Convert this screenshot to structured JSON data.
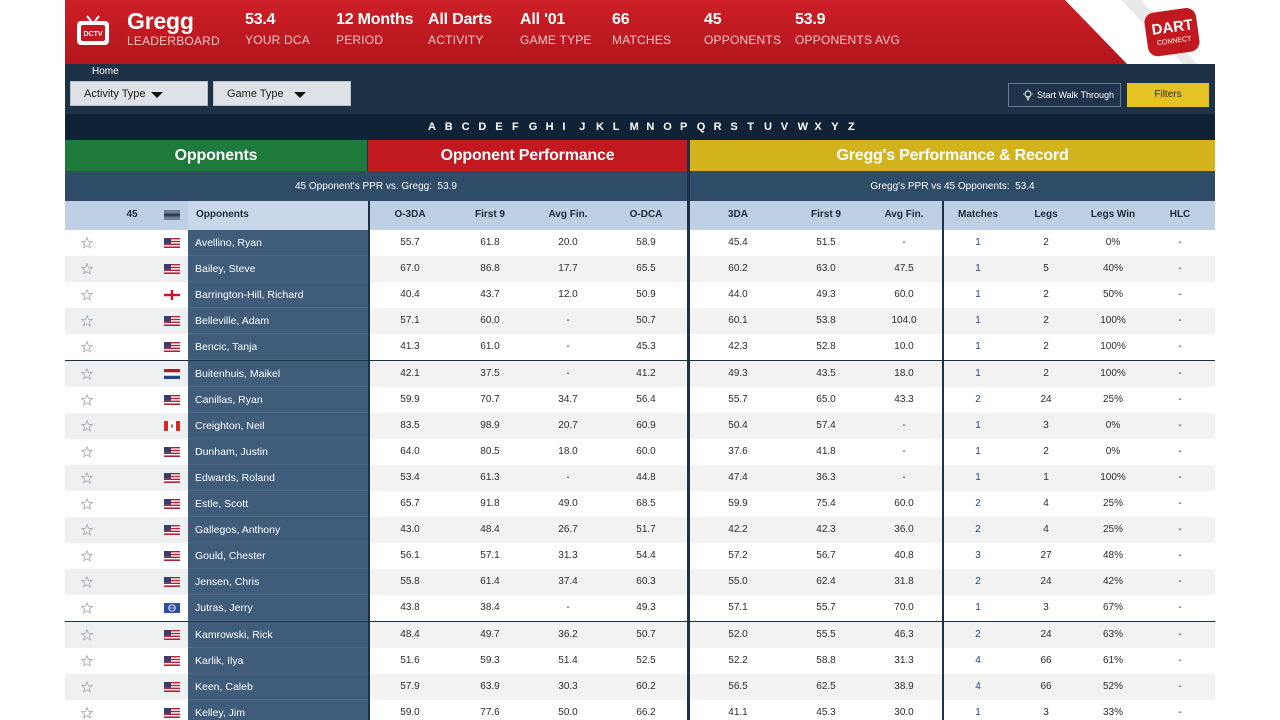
{
  "header": {
    "logo_icon": "dctv-tv-icon",
    "player": {
      "value": "Gregg",
      "label": "LEADERBOARD"
    },
    "stats": [
      {
        "value": "53.4",
        "label": "YOUR DCA"
      },
      {
        "value": "12 Months",
        "label": "PERIOD"
      },
      {
        "value": "All Darts",
        "label": "ACTIVITY"
      },
      {
        "value": "All '01",
        "label": "GAME TYPE"
      },
      {
        "value": "66",
        "label": "MATCHES"
      },
      {
        "value": "45",
        "label": "OPPONENTS"
      },
      {
        "value": "53.9",
        "label": "OPPONENTS AVG"
      }
    ],
    "brand_icon": "dartconnect-logo",
    "brand_line1": "DART",
    "brand_line2": "CONNECT"
  },
  "toolbar": {
    "breadcrumb": "Home",
    "activity_dropdown": "Activity Type",
    "game_dropdown": "Game Type",
    "walkthrough_label": "Start Walk Through",
    "filters_label": "Filters"
  },
  "alphabet": [
    "A",
    "B",
    "C",
    "D",
    "E",
    "F",
    "G",
    "H",
    "I",
    "J",
    "K",
    "L",
    "M",
    "N",
    "O",
    "P",
    "Q",
    "R",
    "S",
    "T",
    "U",
    "V",
    "W",
    "X",
    "Y",
    "Z"
  ],
  "sections": {
    "opponents": "Opponents",
    "opponent_performance": "Opponent Performance",
    "gregg_performance": "Gregg's Performance & Record"
  },
  "ppr": {
    "left_text": "45 Opponent's PPR vs. Gregg:",
    "left_value": "53.9",
    "right_text": "Gregg's PPR vs 45 Opponents:",
    "right_value": "53.4"
  },
  "columns": {
    "count": "45",
    "opponents": "Opponents",
    "o3da": "O-3DA",
    "first9": "First 9",
    "avgfin": "Avg Fin.",
    "odca": "O-DCA",
    "g3da": "3DA",
    "gfirst9": "First 9",
    "gavgfin": "Avg Fin.",
    "matches": "Matches",
    "legs": "Legs",
    "legswin": "Legs Win",
    "hlc": "HLC"
  },
  "colors": {
    "header_red": "#c21820",
    "opponents_green": "#1e7a3c",
    "record_gold": "#d2b31d",
    "navy": "#1d3147",
    "filters_yellow": "#e5c322"
  },
  "rows": [
    {
      "name": "Avellino, Ryan",
      "flag": "us",
      "o3da": "55.7",
      "f9": "61.8",
      "afin": "20.0",
      "odca": "58.9",
      "g3da": "45.4",
      "gf9": "51.5",
      "gafin": "-",
      "m": "1",
      "legs": "2",
      "lw": "0%",
      "hlc": "-"
    },
    {
      "name": "Bailey, Steve",
      "flag": "us",
      "o3da": "67.0",
      "f9": "86.8",
      "afin": "17.7",
      "odca": "65.5",
      "g3da": "60.2",
      "gf9": "63.0",
      "gafin": "47.5",
      "m": "1",
      "legs": "5",
      "lw": "40%",
      "hlc": "-"
    },
    {
      "name": "Barrington-Hill, Richard",
      "flag": "en",
      "o3da": "40.4",
      "f9": "43.7",
      "afin": "12.0",
      "odca": "50.9",
      "g3da": "44.0",
      "gf9": "49.3",
      "gafin": "60.0",
      "m": "1",
      "legs": "2",
      "lw": "50%",
      "hlc": "-"
    },
    {
      "name": "Belleville, Adam",
      "flag": "us",
      "o3da": "57.1",
      "f9": "60.0",
      "afin": "-",
      "odca": "50.7",
      "g3da": "60.1",
      "gf9": "53.8",
      "gafin": "104.0",
      "m": "1",
      "legs": "2",
      "lw": "100%",
      "hlc": "-"
    },
    {
      "name": "Bencic, Tanja",
      "flag": "us",
      "o3da": "41.3",
      "f9": "61.0",
      "afin": "-",
      "odca": "45.3",
      "g3da": "42.3",
      "gf9": "52.8",
      "gafin": "10.0",
      "m": "1",
      "legs": "2",
      "lw": "100%",
      "hlc": "-"
    },
    {
      "name": "Buitenhuis, Maikel",
      "flag": "nl",
      "o3da": "42.1",
      "f9": "37.5",
      "afin": "-",
      "odca": "41.2",
      "g3da": "49.3",
      "gf9": "43.5",
      "gafin": "18.0",
      "m": "1",
      "legs": "2",
      "lw": "100%",
      "hlc": "-"
    },
    {
      "name": "Canillas, Ryan",
      "flag": "us",
      "o3da": "59.9",
      "f9": "70.7",
      "afin": "34.7",
      "odca": "56.4",
      "g3da": "55.7",
      "gf9": "65.0",
      "gafin": "43.3",
      "m": "2",
      "legs": "24",
      "lw": "25%",
      "hlc": "-"
    },
    {
      "name": "Creighton, Neil",
      "flag": "ca",
      "o3da": "83.5",
      "f9": "98.9",
      "afin": "20.7",
      "odca": "60.9",
      "g3da": "50.4",
      "gf9": "57.4",
      "gafin": "-",
      "m": "1",
      "legs": "3",
      "lw": "0%",
      "hlc": "-"
    },
    {
      "name": "Dunham, Justin",
      "flag": "us",
      "o3da": "64.0",
      "f9": "80.5",
      "afin": "18.0",
      "odca": "60.0",
      "g3da": "37.6",
      "gf9": "41.8",
      "gafin": "-",
      "m": "1",
      "legs": "2",
      "lw": "0%",
      "hlc": "-"
    },
    {
      "name": "Edwards, Roland",
      "flag": "us",
      "o3da": "53.4",
      "f9": "61.3",
      "afin": "-",
      "odca": "44.8",
      "g3da": "47.4",
      "gf9": "36.3",
      "gafin": "-",
      "m": "1",
      "legs": "1",
      "lw": "100%",
      "hlc": "-"
    },
    {
      "name": "Estle, Scott",
      "flag": "us",
      "o3da": "65.7",
      "f9": "91.8",
      "afin": "49.0",
      "odca": "68.5",
      "g3da": "59.9",
      "gf9": "75.4",
      "gafin": "60.0",
      "m": "2",
      "legs": "4",
      "lw": "25%",
      "hlc": "-"
    },
    {
      "name": "Gallegos, Anthony",
      "flag": "us",
      "o3da": "43.0",
      "f9": "48.4",
      "afin": "26.7",
      "odca": "51.7",
      "g3da": "42.2",
      "gf9": "42.3",
      "gafin": "36.0",
      "m": "2",
      "legs": "4",
      "lw": "25%",
      "hlc": "-"
    },
    {
      "name": "Gould, Chester",
      "flag": "us",
      "o3da": "56.1",
      "f9": "57.1",
      "afin": "31.3",
      "odca": "54.4",
      "g3da": "57.2",
      "gf9": "56.7",
      "gafin": "40.8",
      "m": "3",
      "legs": "27",
      "lw": "48%",
      "hlc": "-"
    },
    {
      "name": "Jensen, Chris",
      "flag": "us",
      "o3da": "55.8",
      "f9": "61.4",
      "afin": "37.4",
      "odca": "60.3",
      "g3da": "55.0",
      "gf9": "62.4",
      "gafin": "31.8",
      "m": "2",
      "legs": "24",
      "lw": "42%",
      "hlc": "-"
    },
    {
      "name": "Jutras, Jerry",
      "flag": "un",
      "o3da": "43.8",
      "f9": "38.4",
      "afin": "-",
      "odca": "49.3",
      "g3da": "57.1",
      "gf9": "55.7",
      "gafin": "70.0",
      "m": "1",
      "legs": "3",
      "lw": "67%",
      "hlc": "-"
    },
    {
      "name": "Kamrowski, Rick",
      "flag": "us",
      "o3da": "48.4",
      "f9": "49.7",
      "afin": "36.2",
      "odca": "50.7",
      "g3da": "52.0",
      "gf9": "55.5",
      "gafin": "46.3",
      "m": "2",
      "legs": "24",
      "lw": "63%",
      "hlc": "-"
    },
    {
      "name": "Karlik, Ilya",
      "flag": "us",
      "o3da": "51.6",
      "f9": "59.3",
      "afin": "51.4",
      "odca": "52.5",
      "g3da": "52.2",
      "gf9": "58.8",
      "gafin": "31.3",
      "m": "4",
      "legs": "66",
      "lw": "61%",
      "hlc": "-"
    },
    {
      "name": "Keen, Caleb",
      "flag": "us",
      "o3da": "57.9",
      "f9": "63.9",
      "afin": "30.3",
      "odca": "60.2",
      "g3da": "56.5",
      "gf9": "62.5",
      "gafin": "38.9",
      "m": "4",
      "legs": "66",
      "lw": "52%",
      "hlc": "-"
    },
    {
      "name": "Kelley, Jim",
      "flag": "us",
      "o3da": "59.0",
      "f9": "77.6",
      "afin": "50.0",
      "odca": "66.2",
      "g3da": "41.1",
      "gf9": "45.3",
      "gafin": "30.0",
      "m": "1",
      "legs": "3",
      "lw": "33%",
      "hlc": "-"
    }
  ]
}
